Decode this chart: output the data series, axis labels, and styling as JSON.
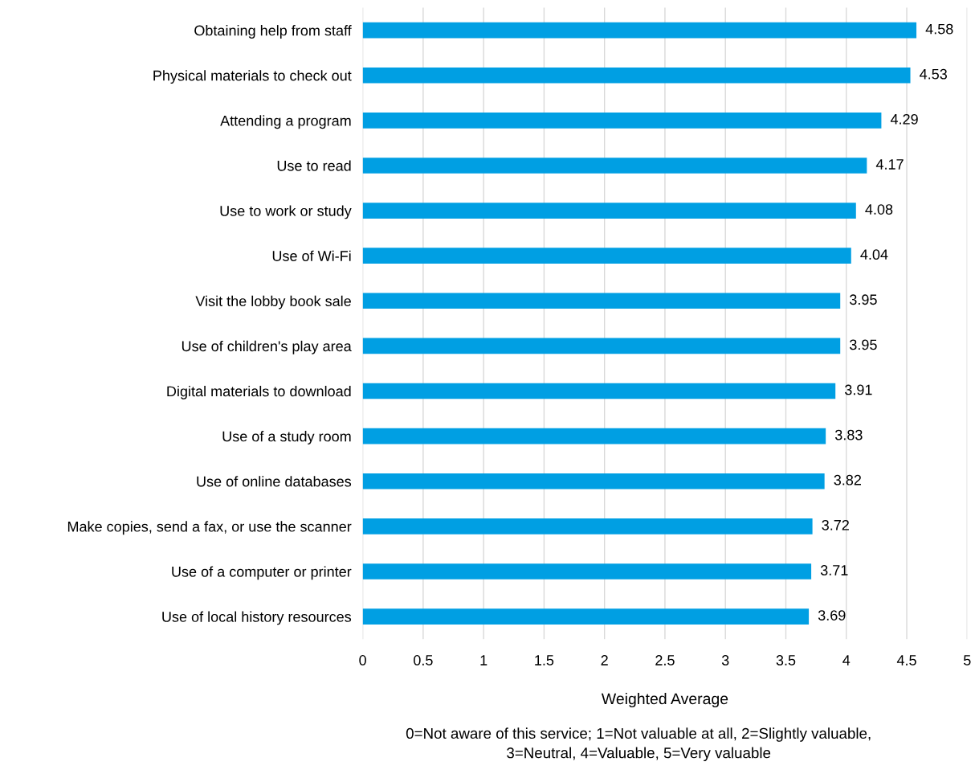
{
  "chart_data": {
    "type": "bar",
    "orientation": "horizontal",
    "categories": [
      "Obtaining help from staff",
      "Physical materials to check out",
      "Attending a program",
      "Use to read",
      "Use to work or study",
      "Use of Wi-Fi",
      "Visit the lobby book sale",
      "Use of children's play area",
      "Digital materials to download",
      "Use of a study room",
      "Use of online databases",
      "Make copies, send a fax, or use the scanner",
      "Use of a computer or printer",
      "Use of local history resources"
    ],
    "values": [
      4.58,
      4.53,
      4.29,
      4.17,
      4.08,
      4.04,
      3.95,
      3.95,
      3.91,
      3.83,
      3.82,
      3.72,
      3.71,
      3.69
    ],
    "color": "#009fe3",
    "data_labels": true,
    "xlim": [
      0,
      5
    ],
    "xticks": [
      0,
      0.5,
      1,
      1.5,
      2,
      2.5,
      3,
      3.5,
      4,
      4.5,
      5
    ],
    "grid": "x",
    "xlabel": "Weighted Average",
    "annotations": [
      "0=Not aware of this service; 1=Not valuable at all, 2=Slightly valuable,\n3=Neutral, 4=Valuable, 5=Very valuable"
    ]
  }
}
